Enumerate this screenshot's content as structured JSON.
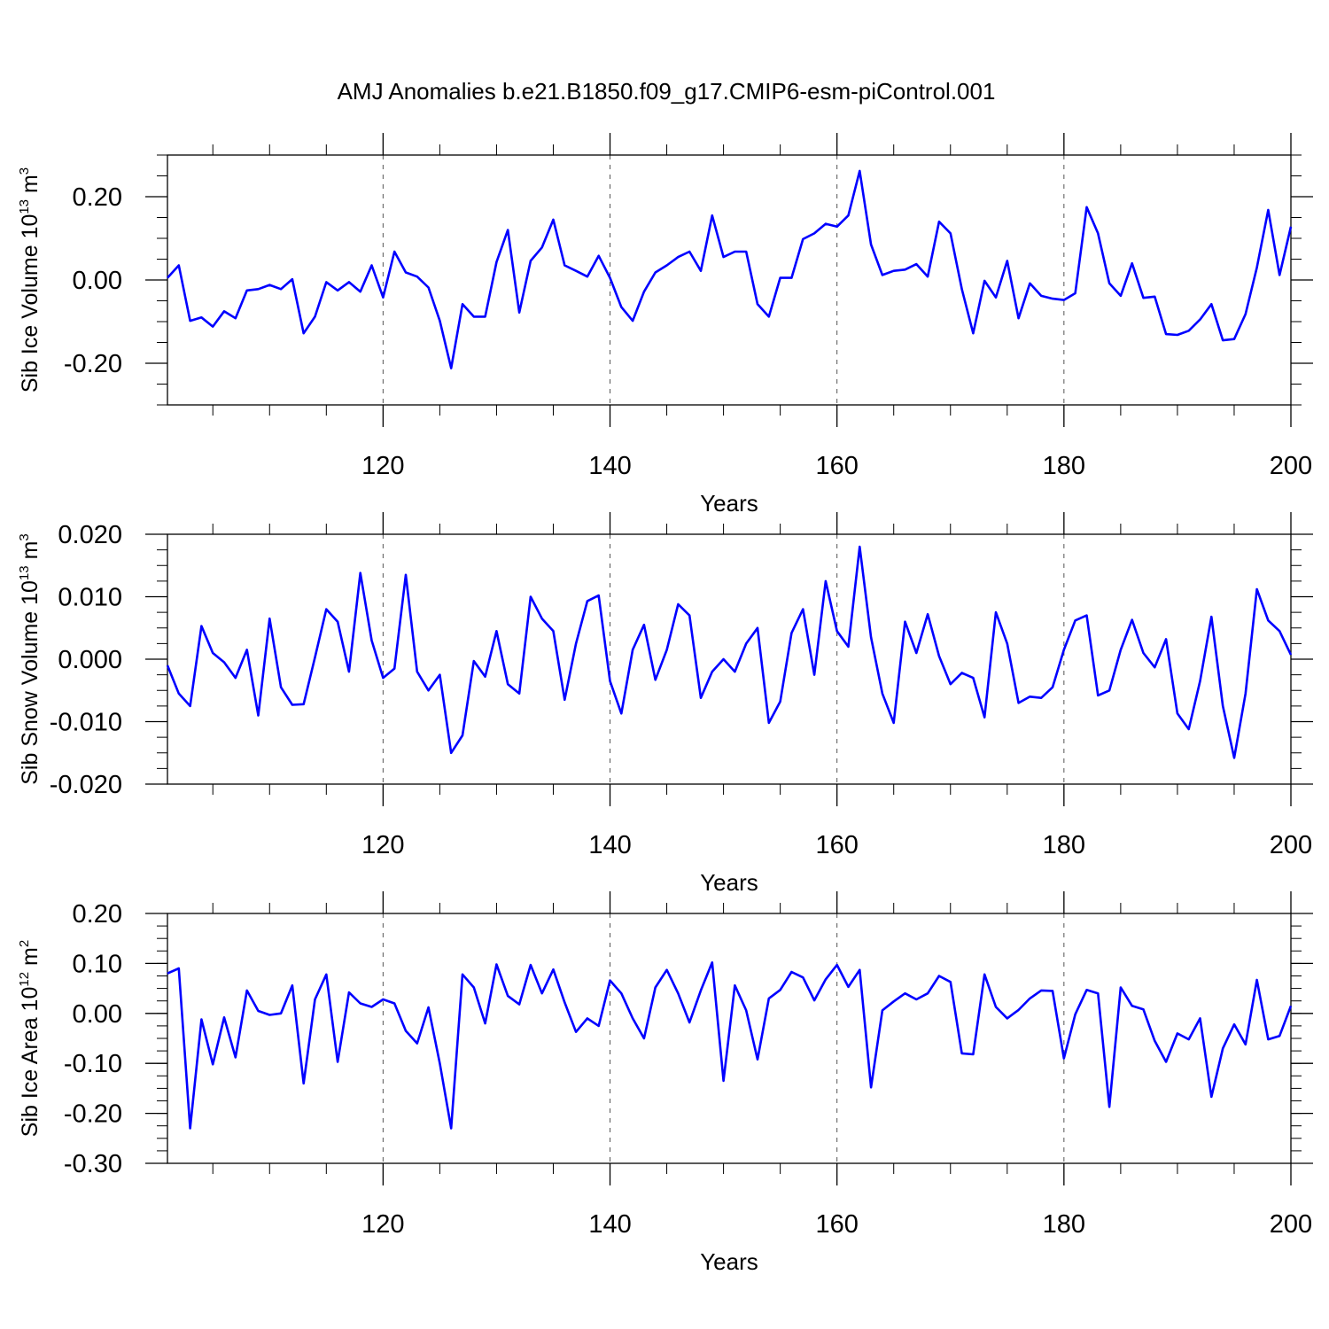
{
  "title": "AMJ Anomalies b.e21.B1850.f09_g17.CMIP6-esm-piControl.001",
  "colors": {
    "series": "#0000ff",
    "axis": "#000000",
    "grid": "#555555"
  },
  "chart_data": [
    {
      "type": "line",
      "panel": "ice-volume",
      "ylabel": {
        "main": "Sib Ice Volume 10",
        "exp": "13",
        "unit": " m",
        "unit_exp": "3"
      },
      "xlabel": "Years",
      "xlim": [
        101,
        200
      ],
      "ylim": [
        -0.3,
        0.3
      ],
      "xticks": [
        "120",
        "140",
        "160",
        "180",
        "200"
      ],
      "yticks": [
        "0.20",
        "0.00",
        "-0.20"
      ],
      "ytick_values": [
        0.2,
        0.0,
        -0.2
      ],
      "y_minor_step": 0.05,
      "x_start": 101,
      "values": [
        0.005,
        0.035,
        -0.098,
        -0.09,
        -0.112,
        -0.075,
        -0.092,
        -0.025,
        -0.022,
        -0.012,
        -0.022,
        0.002,
        -0.128,
        -0.088,
        -0.005,
        -0.025,
        -0.005,
        -0.028,
        0.035,
        -0.042,
        0.068,
        0.018,
        0.008,
        -0.018,
        -0.098,
        -0.212,
        -0.058,
        -0.088,
        -0.088,
        0.043,
        0.12,
        -0.078,
        0.046,
        0.078,
        0.145,
        0.035,
        0.022,
        0.008,
        0.058,
        0.005,
        -0.065,
        -0.098,
        -0.028,
        0.018,
        0.035,
        0.055,
        0.068,
        0.022,
        0.155,
        0.055,
        0.068,
        0.068,
        -0.058,
        -0.088,
        0.005,
        0.005,
        0.098,
        0.112,
        0.135,
        0.128,
        0.155,
        0.262,
        0.085,
        0.012,
        0.022,
        0.025,
        0.038,
        0.008,
        0.14,
        0.112,
        -0.022,
        -0.128,
        -0.002,
        -0.042,
        0.046,
        -0.092,
        -0.008,
        -0.038,
        -0.045,
        -0.048,
        -0.032,
        0.175,
        0.112,
        -0.008,
        -0.038,
        0.04,
        -0.043,
        -0.04,
        -0.13,
        -0.132,
        -0.122,
        -0.095,
        -0.058,
        -0.145,
        -0.142,
        -0.082,
        0.03,
        0.168,
        0.012,
        0.128
      ]
    },
    {
      "type": "line",
      "panel": "snow-volume",
      "ylabel": {
        "main": "Sib Snow Volume 10",
        "exp": "13",
        "unit": " m",
        "unit_exp": "3"
      },
      "xlabel": "Years",
      "xlim": [
        101,
        200
      ],
      "ylim": [
        -0.02,
        0.02
      ],
      "xticks": [
        "120",
        "140",
        "160",
        "180",
        "200"
      ],
      "yticks": [
        "0.020",
        "0.010",
        "0.000",
        "-0.010",
        "-0.020"
      ],
      "ytick_values": [
        0.02,
        0.01,
        0.0,
        -0.01,
        -0.02
      ],
      "y_minor_step": 0.0025,
      "x_start": 101,
      "values": [
        -0.001,
        -0.0055,
        -0.0075,
        0.0053,
        0.001,
        -0.0005,
        -0.003,
        0.0015,
        -0.009,
        0.0065,
        -0.0045,
        -0.0073,
        -0.0072,
        0.0003,
        0.008,
        0.006,
        -0.002,
        0.0138,
        0.003,
        -0.003,
        -0.0015,
        0.0135,
        -0.002,
        -0.005,
        -0.0025,
        -0.015,
        -0.0122,
        -0.0003,
        -0.0028,
        0.0045,
        -0.004,
        -0.0055,
        0.01,
        0.0065,
        0.0045,
        -0.0065,
        0.0025,
        0.0093,
        0.0102,
        -0.0035,
        -0.0087,
        0.0015,
        0.0055,
        -0.0033,
        0.0015,
        0.0088,
        0.007,
        -0.0062,
        -0.002,
        0.0,
        -0.002,
        0.0025,
        0.005,
        -0.0102,
        -0.0068,
        0.0042,
        0.008,
        -0.0025,
        0.0125,
        0.0045,
        0.002,
        0.018,
        0.0035,
        -0.0055,
        -0.0102,
        0.006,
        0.001,
        0.0072,
        0.0005,
        -0.004,
        -0.0022,
        -0.003,
        -0.0093,
        0.0075,
        0.0025,
        -0.007,
        -0.006,
        -0.0062,
        -0.0045,
        0.0015,
        0.0062,
        0.007,
        -0.0058,
        -0.005,
        0.0015,
        0.0063,
        0.001,
        -0.0013,
        0.0032,
        -0.0087,
        -0.0112,
        -0.0035,
        0.0068,
        -0.0075,
        -0.0158,
        -0.0055,
        0.0112,
        0.0062,
        0.0045,
        0.0007
      ]
    },
    {
      "type": "line",
      "panel": "ice-area",
      "ylabel": {
        "main": "Sib Ice Area 10",
        "exp": "12",
        "unit": " m",
        "unit_exp": "2"
      },
      "xlabel": "Years",
      "xlim": [
        101,
        200
      ],
      "ylim": [
        -0.3,
        0.2
      ],
      "xticks": [
        "120",
        "140",
        "160",
        "180",
        "200"
      ],
      "yticks": [
        "0.20",
        "0.10",
        "0.00",
        "-0.10",
        "-0.20",
        "-0.30"
      ],
      "ytick_values": [
        0.2,
        0.1,
        0.0,
        -0.1,
        -0.2,
        -0.3
      ],
      "y_minor_step": 0.025,
      "x_start": 101,
      "values": [
        0.08,
        0.09,
        -0.23,
        -0.012,
        -0.102,
        -0.008,
        -0.088,
        0.046,
        0.005,
        -0.003,
        0.0,
        0.056,
        -0.14,
        0.028,
        0.078,
        -0.097,
        0.042,
        0.02,
        0.013,
        0.028,
        0.02,
        -0.035,
        -0.06,
        0.012,
        -0.1,
        -0.23,
        0.078,
        0.052,
        -0.02,
        0.098,
        0.035,
        0.018,
        0.097,
        0.04,
        0.088,
        0.022,
        -0.037,
        -0.01,
        -0.025,
        0.066,
        0.04,
        -0.01,
        -0.05,
        0.052,
        0.087,
        0.04,
        -0.018,
        0.046,
        0.102,
        -0.135,
        0.056,
        0.006,
        -0.092,
        0.03,
        0.047,
        0.083,
        0.072,
        0.026,
        0.068,
        0.097,
        0.053,
        0.087,
        -0.148,
        0.006,
        0.024,
        0.04,
        0.028,
        0.04,
        0.075,
        0.063,
        -0.08,
        -0.082,
        0.078,
        0.013,
        -0.01,
        0.007,
        0.03,
        0.046,
        0.045,
        -0.09,
        -0.002,
        0.047,
        0.04,
        -0.187,
        0.052,
        0.015,
        0.008,
        -0.055,
        -0.097,
        -0.04,
        -0.052,
        -0.01,
        -0.167,
        -0.07,
        -0.022,
        -0.062,
        0.067,
        -0.052,
        -0.045,
        0.015
      ]
    }
  ]
}
